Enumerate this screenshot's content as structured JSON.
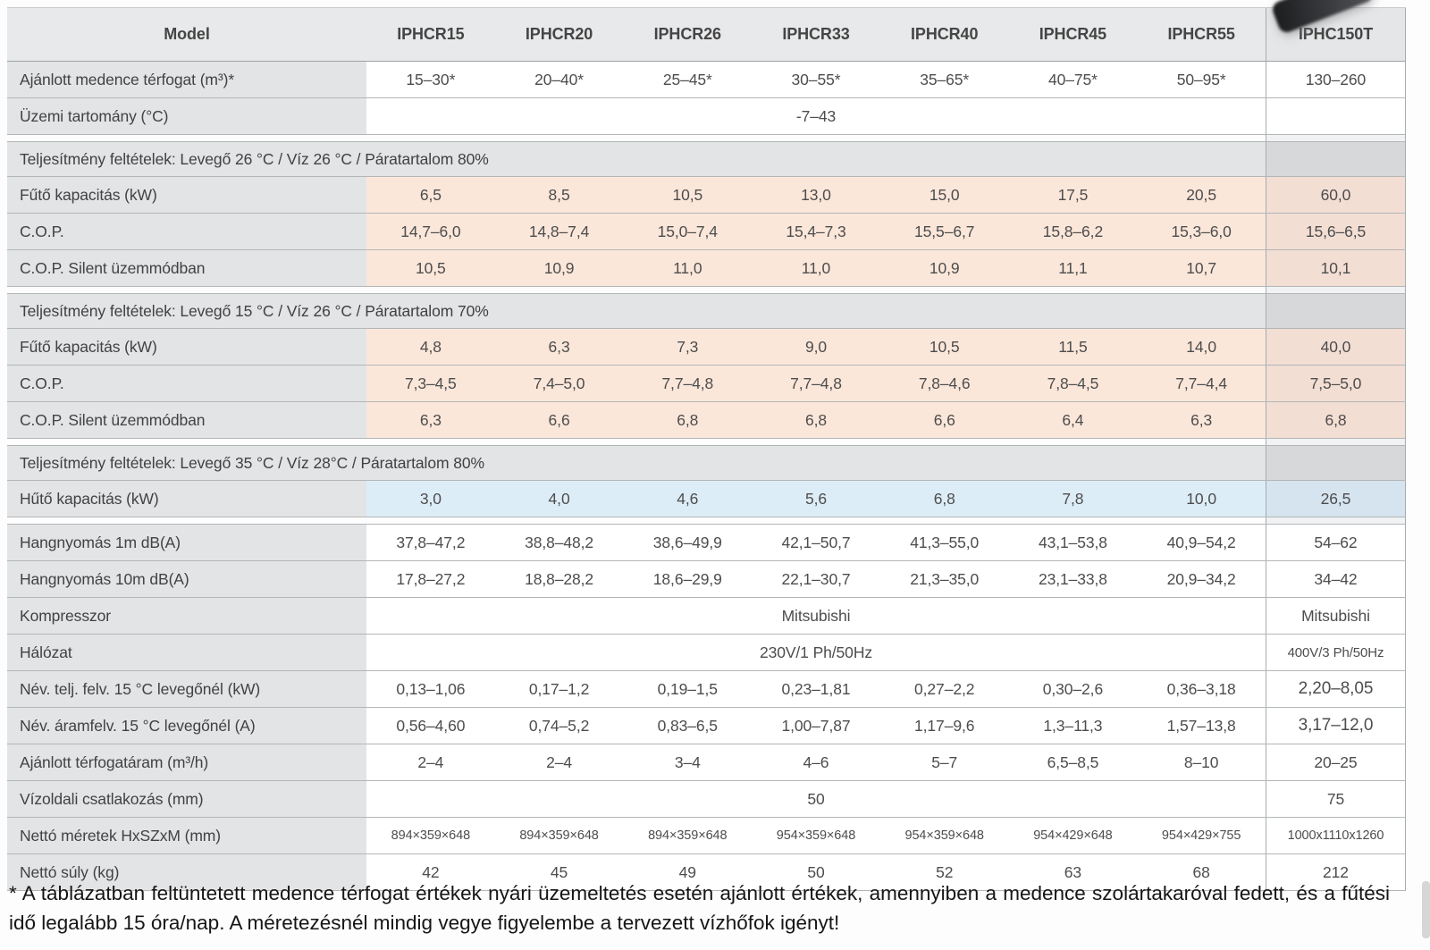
{
  "table": {
    "header": {
      "model_label": "Model",
      "columns": [
        "IPHCR15",
        "IPHCR20",
        "IPHCR26",
        "IPHCR33",
        "IPHCR40",
        "IPHCR45",
        "IPHCR55",
        "IPHC150T"
      ]
    },
    "rows": [
      {
        "type": "data",
        "bg": "white",
        "label": "Ajánlott medence térfogat (m³)*",
        "values": [
          "15–30*",
          "20–40*",
          "25–45*",
          "30–55*",
          "35–65*",
          "40–75*",
          "50–95*"
        ],
        "last": "130–260"
      },
      {
        "type": "span",
        "bg": "white",
        "label": "Üzemi tartomány (°C)",
        "value": "-7–43",
        "last": ""
      },
      {
        "type": "gap"
      },
      {
        "type": "section",
        "label": "Teljesítmény feltételek: Levegő 26 °C / Víz 26 °C / Páratartalom 80%"
      },
      {
        "type": "data",
        "bg": "orange",
        "label": "Fűtő kapacitás (kW)",
        "values": [
          "6,5",
          "8,5",
          "10,5",
          "13,0",
          "15,0",
          "17,5",
          "20,5"
        ],
        "last": "60,0"
      },
      {
        "type": "data",
        "bg": "orange",
        "label": "C.O.P.",
        "values": [
          "14,7–6,0",
          "14,8–7,4",
          "15,0–7,4",
          "15,4–7,3",
          "15,5–6,7",
          "15,8–6,2",
          "15,3–6,0"
        ],
        "last": "15,6–6,5"
      },
      {
        "type": "data",
        "bg": "orange",
        "label": "C.O.P. Silent üzemmódban",
        "values": [
          "10,5",
          "10,9",
          "11,0",
          "11,0",
          "10,9",
          "11,1",
          "10,7"
        ],
        "last": "10,1"
      },
      {
        "type": "gap"
      },
      {
        "type": "section",
        "label": "Teljesítmény feltételek: Levegő 15 °C / Víz 26 °C / Páratartalom 70%"
      },
      {
        "type": "data",
        "bg": "orange",
        "label": "Fűtő kapacitás (kW)",
        "values": [
          "4,8",
          "6,3",
          "7,3",
          "9,0",
          "10,5",
          "11,5",
          "14,0"
        ],
        "last": "40,0"
      },
      {
        "type": "data",
        "bg": "orange",
        "label": "C.O.P.",
        "values": [
          "7,3–4,5",
          "7,4–5,0",
          "7,7–4,8",
          "7,7–4,8",
          "7,8–4,6",
          "7,8–4,5",
          "7,7–4,4"
        ],
        "last": "7,5–5,0"
      },
      {
        "type": "data",
        "bg": "orange",
        "label": "C.O.P. Silent üzemmódban",
        "values": [
          "6,3",
          "6,6",
          "6,8",
          "6,8",
          "6,6",
          "6,4",
          "6,3"
        ],
        "last": "6,8"
      },
      {
        "type": "gap"
      },
      {
        "type": "section",
        "label": "Teljesítmény feltételek: Levegő 35 °C / Víz 28°C / Páratartalom 80%"
      },
      {
        "type": "data",
        "bg": "blue",
        "label": "Hűtő kapacitás (kW)",
        "values": [
          "3,0",
          "4,0",
          "4,6",
          "5,6",
          "6,8",
          "7,8",
          "10,0"
        ],
        "last": "26,5"
      },
      {
        "type": "gap"
      },
      {
        "type": "data",
        "bg": "white",
        "label": "Hangnyomás 1m dB(A)",
        "values": [
          "37,8–47,2",
          "38,8–48,2",
          "38,6–49,9",
          "42,1–50,7",
          "41,3–55,0",
          "43,1–53,8",
          "40,9–54,2"
        ],
        "last": "54–62"
      },
      {
        "type": "data",
        "bg": "white",
        "label": "Hangnyomás 10m dB(A)",
        "values": [
          "17,8–27,2",
          "18,8–28,2",
          "18,6–29,9",
          "22,1–30,7",
          "21,3–35,0",
          "23,1–33,8",
          "20,9–34,2"
        ],
        "last": "34–42"
      },
      {
        "type": "span",
        "bg": "white",
        "label": "Kompresszor",
        "value": "Mitsubishi",
        "last": "Mitsubishi"
      },
      {
        "type": "span",
        "bg": "white",
        "label": "Hálózat",
        "value": "230V/1 Ph/50Hz",
        "last": "400V/3 Ph/50Hz",
        "last_small": true
      },
      {
        "type": "data",
        "bg": "white",
        "label": "Név. telj. felv. 15 °C levegőnél (kW)",
        "values": [
          "0,13–1,06",
          "0,17–1,2",
          "0,19–1,5",
          "0,23–1,81",
          "0,27–2,2",
          "0,30–2,6",
          "0,36–3,18"
        ],
        "last": "2,20–8,05",
        "last_big": true
      },
      {
        "type": "data",
        "bg": "white",
        "label": "Név. áramfelv. 15 °C levegőnél (A)",
        "values": [
          "0,56–4,60",
          "0,74–5,2",
          "0,83–6,5",
          "1,00–7,87",
          "1,17–9,6",
          "1,3–11,3",
          "1,57–13,8"
        ],
        "last": "3,17–12,0",
        "last_big": true
      },
      {
        "type": "data",
        "bg": "white",
        "label": "Ajánlott térfogatáram (m³/h)",
        "values": [
          "2–4",
          "2–4",
          "3–4",
          "4–6",
          "5–7",
          "6,5–8,5",
          "8–10"
        ],
        "last": "20–25"
      },
      {
        "type": "span",
        "bg": "white",
        "label": "Vízoldali csatlakozás (mm)",
        "value": "50",
        "last": "75"
      },
      {
        "type": "data",
        "bg": "white",
        "small": true,
        "label": "Nettó méretek HxSZxM (mm)",
        "values": [
          "894×359×648",
          "894×359×648",
          "894×359×648",
          "954×359×648",
          "954×359×648",
          "954×429×648",
          "954×429×755"
        ],
        "last": "1000x1110x1260",
        "last_small": true
      },
      {
        "type": "data",
        "bg": "white",
        "label": "Nettó súly (kg)",
        "values": [
          "42",
          "45",
          "49",
          "50",
          "52",
          "63",
          "68"
        ],
        "last": "212"
      }
    ]
  },
  "footnote": "* A táblázatban feltüntetett medence térfogat értékek nyári üzemeltetés esetén ajánlott értékek, amennyiben a medence szolártakaróval fedett, és a fűtési idő legalább 15 óra/nap. A méretezésnél mindig vegye figyelembe a tervezett vízhőfok igényt!",
  "colors": {
    "header_bg": "#e8e9ea",
    "label_bg": "#e3e4e6",
    "section_last_bg": "#d6d8da",
    "orange_bg": "#fbe7da",
    "orange_last_bg": "#f3ded4",
    "blue_bg": "#ddedf8",
    "blue_last_bg": "#d6e4ef",
    "white_last_bg": "#f2f3f5",
    "row_border": "#b3b6b7",
    "last_col_border": "#a7abae",
    "text": "#4d4d4d",
    "footnote_text": "#161616"
  }
}
